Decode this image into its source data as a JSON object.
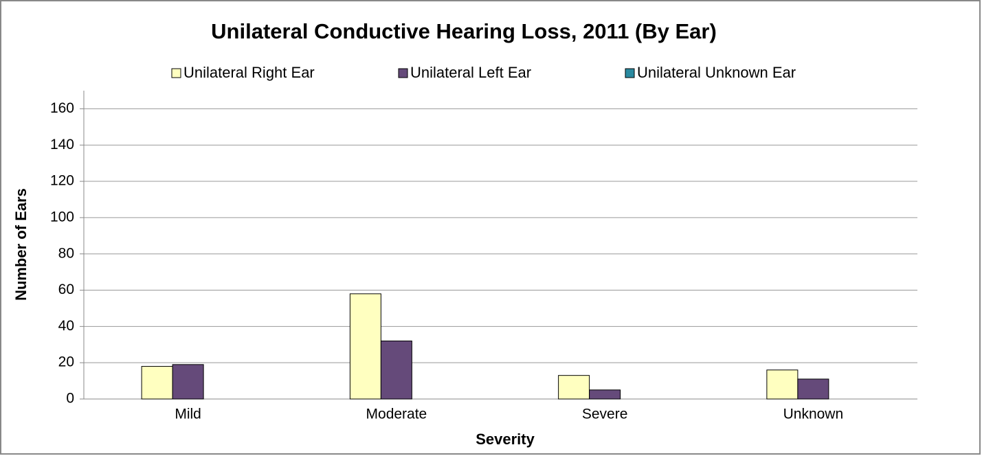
{
  "chart_data": {
    "type": "bar",
    "title": "Unilateral Conductive Hearing Loss, 2011 (By Ear)",
    "x_label": "Severity",
    "y_label": "Number of Ears",
    "categories": [
      "Mild",
      "Moderate",
      "Severe",
      "Unknown"
    ],
    "series": [
      {
        "name": "Unilateral Right Ear",
        "color": "#ffffc0",
        "values": [
          18,
          58,
          13,
          16
        ]
      },
      {
        "name": "Unilateral Left Ear",
        "color": "#654a7a",
        "values": [
          19,
          32,
          5,
          11
        ]
      },
      {
        "name": "Unilateral Unknown Ear",
        "color": "#2a8aa0",
        "values": [
          0,
          0,
          0,
          0
        ]
      }
    ],
    "ylim": [
      0,
      170
    ],
    "yticks": [
      0,
      20,
      40,
      60,
      80,
      100,
      120,
      140,
      160
    ],
    "grid": true,
    "legend": "top"
  }
}
